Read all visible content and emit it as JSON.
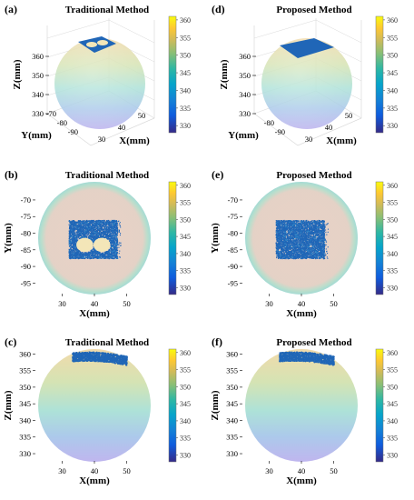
{
  "chart_data": [
    {
      "panel": "(a)",
      "title": "Traditional Method",
      "type": "scatter",
      "view": "3d",
      "xlabel": "X(mm)",
      "ylabel": "Y(mm)",
      "zlabel": "Z(mm)",
      "x_ticks": [
        "30",
        "40",
        "50"
      ],
      "y_ticks": [
        "-70",
        "-80",
        "-90"
      ],
      "z_ticks": [
        "330",
        "340",
        "350",
        "360"
      ],
      "colorbar": {
        "ticks": [
          "360",
          "355",
          "350",
          "345",
          "340",
          "335",
          "330"
        ],
        "range": [
          328,
          361
        ]
      },
      "patch": {
        "x_range": [
          32,
          50
        ],
        "y_range": [
          -87,
          -76
        ],
        "z_range": [
          357,
          361
        ],
        "has_holes": true
      }
    },
    {
      "panel": "(d)",
      "title": "Proposed Method",
      "type": "scatter",
      "view": "3d",
      "xlabel": "X(mm)",
      "ylabel": "Y(mm)",
      "zlabel": "Z(mm)",
      "x_ticks": [
        "30",
        "40",
        "50"
      ],
      "y_ticks": [
        "-80",
        "-90"
      ],
      "z_ticks": [
        "330",
        "340",
        "350",
        "360"
      ],
      "colorbar": {
        "ticks": [
          "360",
          "355",
          "350",
          "345",
          "340",
          "335",
          "330"
        ],
        "range": [
          328,
          361
        ]
      },
      "patch": {
        "x_range": [
          32,
          50
        ],
        "y_range": [
          -87,
          -76
        ],
        "z_range": [
          357,
          361
        ],
        "has_holes": false
      }
    },
    {
      "panel": "(b)",
      "title": "Traditional Method",
      "type": "scatter",
      "view": "top",
      "xlabel": "X(mm)",
      "ylabel": "Y(mm)",
      "x_ticks": [
        "30",
        "40",
        "50"
      ],
      "y_ticks": [
        "-70",
        "-75",
        "-80",
        "-85",
        "-90",
        "-95"
      ],
      "xlim": [
        22,
        58
      ],
      "ylim": [
        -99,
        -64
      ],
      "colorbar": {
        "ticks": [
          "360",
          "355",
          "350",
          "345",
          "340",
          "335",
          "330"
        ],
        "range": [
          328,
          361
        ]
      },
      "patch": {
        "x_range": [
          32,
          47
        ],
        "y_range": [
          -87.5,
          -76
        ],
        "holes": [
          [
            37,
            -83.5,
            2.6,
            2.1
          ],
          [
            42.3,
            -83.5,
            2.6,
            2.1
          ]
        ]
      }
    },
    {
      "panel": "(e)",
      "title": "Proposed Method",
      "type": "scatter",
      "view": "top",
      "xlabel": "X(mm)",
      "ylabel": "Y(mm)",
      "x_ticks": [
        "30",
        "40",
        "50"
      ],
      "y_ticks": [
        "-70",
        "-75",
        "-80",
        "-85",
        "-90",
        "-95"
      ],
      "xlim": [
        22,
        58
      ],
      "ylim": [
        -99,
        -64
      ],
      "colorbar": {
        "ticks": [
          "360",
          "355",
          "350",
          "345",
          "340",
          "335",
          "330"
        ],
        "range": [
          328,
          361
        ]
      },
      "patch": {
        "x_range": [
          32,
          47
        ],
        "y_range": [
          -87.5,
          -76
        ],
        "holes": []
      }
    },
    {
      "panel": "(c)",
      "title": "Traditional Method",
      "type": "scatter",
      "view": "side",
      "xlabel": "X(mm)",
      "ylabel": "Z(mm)",
      "x_ticks": [
        "30",
        "40",
        "50"
      ],
      "y_ticks": [
        "330",
        "335",
        "340",
        "345",
        "350",
        "355",
        "360"
      ],
      "xlim": [
        22,
        58
      ],
      "ylim": [
        327,
        362
      ],
      "colorbar": {
        "ticks": [
          "360",
          "355",
          "350",
          "345",
          "340",
          "335",
          "330"
        ],
        "range": [
          328,
          361
        ]
      },
      "patch": {
        "x_range": [
          33,
          50
        ],
        "z_top": 361,
        "thickness": 2.8
      }
    },
    {
      "panel": "(f)",
      "title": "Proposed Method",
      "type": "scatter",
      "view": "side",
      "xlabel": "X(mm)",
      "ylabel": "Z(mm)",
      "x_ticks": [
        "30",
        "40",
        "50"
      ],
      "y_ticks": [
        "330",
        "335",
        "340",
        "345",
        "350",
        "355",
        "360"
      ],
      "xlim": [
        22,
        58
      ],
      "ylim": [
        327,
        362
      ],
      "colorbar": {
        "ticks": [
          "360",
          "355",
          "350",
          "345",
          "340",
          "335",
          "330"
        ],
        "range": [
          328,
          361
        ]
      },
      "patch": {
        "x_range": [
          33,
          50
        ],
        "z_top": 361,
        "thickness": 2.8
      }
    }
  ],
  "colors": {
    "parula": [
      "#352a87",
      "#0f5cdd",
      "#1481d6",
      "#06a4ca",
      "#2eb7a4",
      "#87bf77",
      "#d1bb59",
      "#fec832",
      "#f9fb0e"
    ],
    "sphere_top": "#e8c9a8",
    "sphere_bottom": "#b8b4ec",
    "cloud": "#2066b7",
    "hole": "#f3e6b8"
  }
}
